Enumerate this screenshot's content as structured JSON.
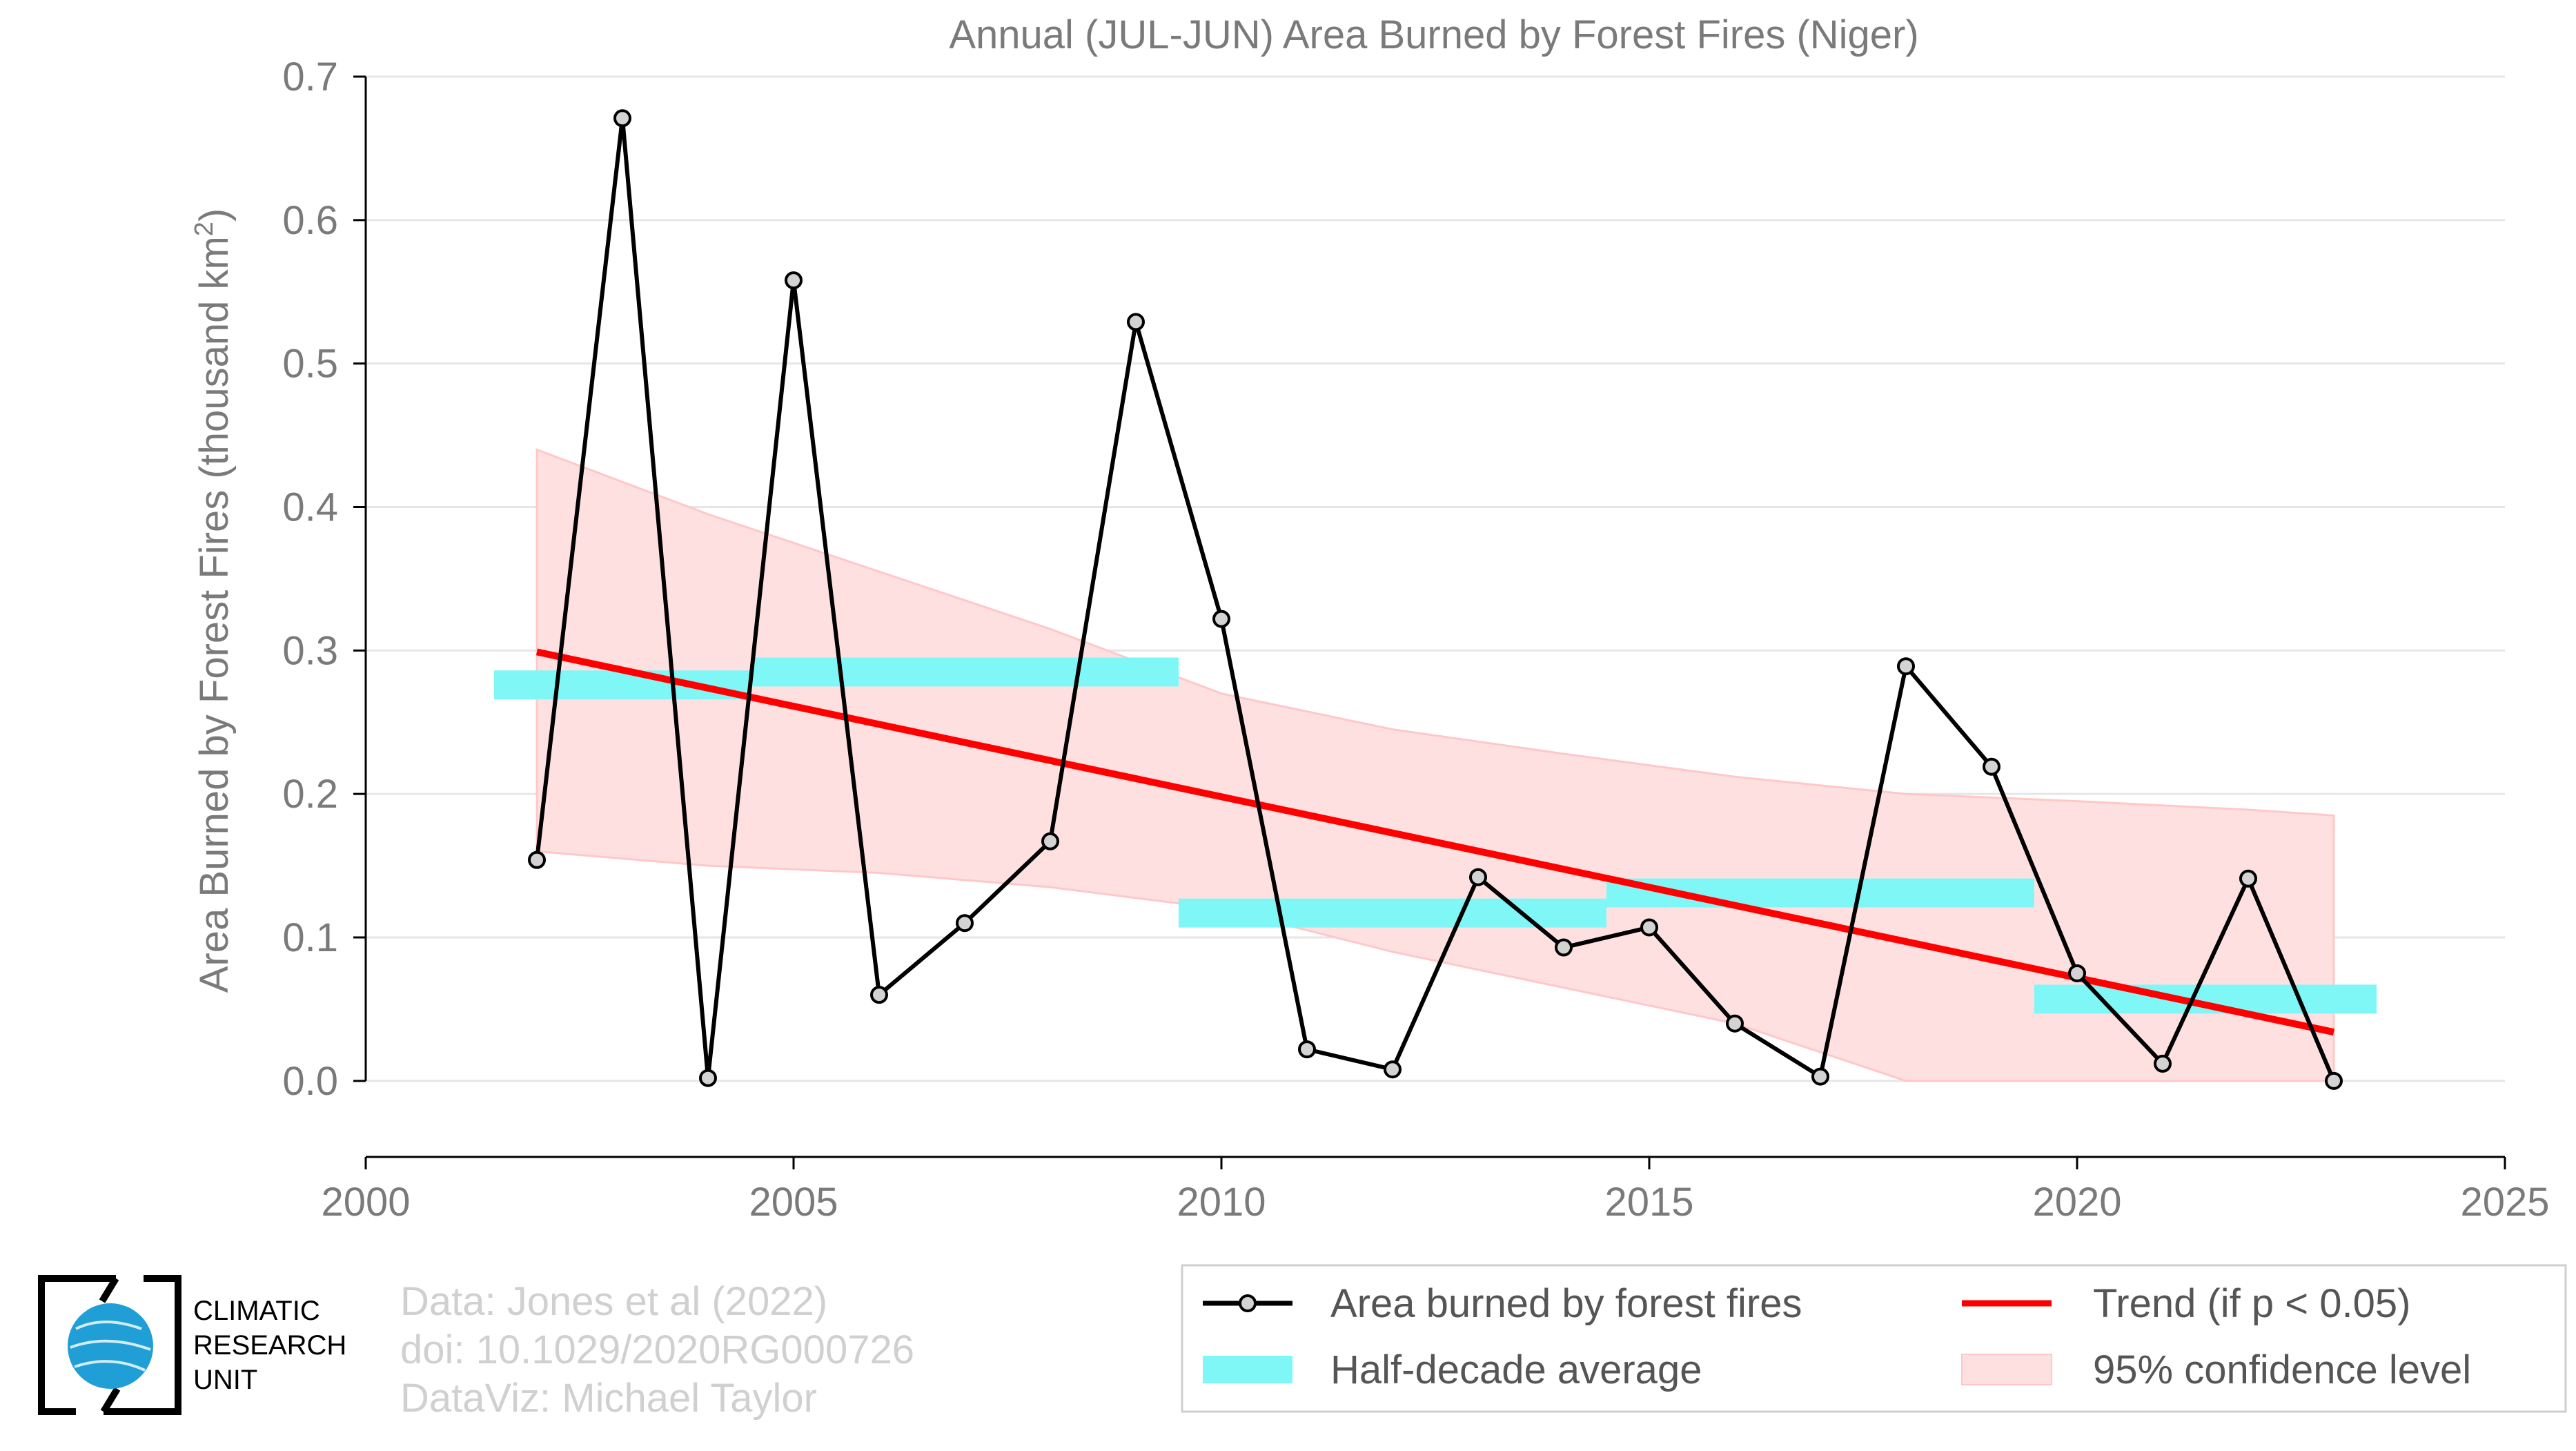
{
  "chart_data": {
    "type": "line",
    "title": "Annual (JUL-JUN) Area Burned by Forest Fires (Niger)",
    "xlabel": "",
    "ylabel_main": "Area Burned by Forest Fires (thousand km",
    "ylabel_sup": "2",
    "ylabel_end": ")",
    "xlim": [
      2000,
      2025
    ],
    "ylim": [
      -0.053,
      0.7
    ],
    "x_ticks": [
      2000,
      2005,
      2010,
      2015,
      2020,
      2025
    ],
    "x_tick_labels": [
      "2000",
      "2005",
      "2010",
      "2015",
      "2020",
      "2025"
    ],
    "y_ticks": [
      0.0,
      0.1,
      0.2,
      0.3,
      0.4,
      0.5,
      0.6,
      0.7
    ],
    "y_tick_labels": [
      "0.0",
      "0.1",
      "0.2",
      "0.3",
      "0.4",
      "0.5",
      "0.6",
      "0.7"
    ],
    "grid": true,
    "series": [
      {
        "name": "Area burned by forest fires",
        "color": "#000000",
        "marker_fill": "#d3d3d3",
        "x": [
          2002,
          2003,
          2004,
          2005,
          2006,
          2007,
          2008,
          2009,
          2010,
          2011,
          2012,
          2013,
          2014,
          2015,
          2016,
          2017,
          2018,
          2019,
          2020,
          2021,
          2022,
          2023
        ],
        "y": [
          0.154,
          0.671,
          0.002,
          0.558,
          0.06,
          0.11,
          0.167,
          0.529,
          0.322,
          0.022,
          0.008,
          0.142,
          0.093,
          0.107,
          0.04,
          0.003,
          0.289,
          0.219,
          0.075,
          0.012,
          0.141,
          0.0
        ]
      }
    ],
    "half_decade_average": {
      "name": "Half-decade average",
      "color": "#7ff7f7",
      "segments": [
        {
          "x_start": 2001.5,
          "x_end": 2004.5,
          "value": 0.276
        },
        {
          "x_start": 2004.5,
          "x_end": 2009.5,
          "value": 0.285
        },
        {
          "x_start": 2009.5,
          "x_end": 2014.5,
          "value": 0.117
        },
        {
          "x_start": 2014.5,
          "x_end": 2019.5,
          "value": 0.131
        },
        {
          "x_start": 2019.5,
          "x_end": 2023.5,
          "value": 0.057
        }
      ]
    },
    "trend": {
      "name": "Trend (if p < 0.05)",
      "color": "#ff0000",
      "x": [
        2002,
        2023
      ],
      "y": [
        0.299,
        0.034
      ]
    },
    "confidence_band": {
      "name": "95% confidence level",
      "color": "#ffe0e0",
      "edge_color": "#ffc8c8",
      "x": [
        2002,
        2004,
        2006,
        2008,
        2010,
        2012,
        2014,
        2016,
        2018,
        2020,
        2022,
        2023
      ],
      "upper": [
        0.44,
        0.395,
        0.355,
        0.315,
        0.27,
        0.245,
        0.228,
        0.212,
        0.2,
        0.195,
        0.189,
        0.185
      ],
      "lower": [
        0.16,
        0.15,
        0.145,
        0.135,
        0.12,
        0.09,
        0.065,
        0.04,
        0.0,
        0.0,
        0.0,
        0.0
      ]
    },
    "legend_position": "bottom-right",
    "legend_entries": [
      "Area burned by forest fires",
      "Half-decade average",
      "Trend (if p < 0.05)",
      "95% confidence level"
    ]
  },
  "credits": {
    "line1": "Data: Jones et al (2022)",
    "line2": "doi: 10.1029/2020RG000726",
    "line3": "DataViz: Michael Taylor"
  },
  "logo": {
    "line1": "CLIMATIC",
    "line2": "RESEARCH",
    "line3": "UNIT"
  }
}
